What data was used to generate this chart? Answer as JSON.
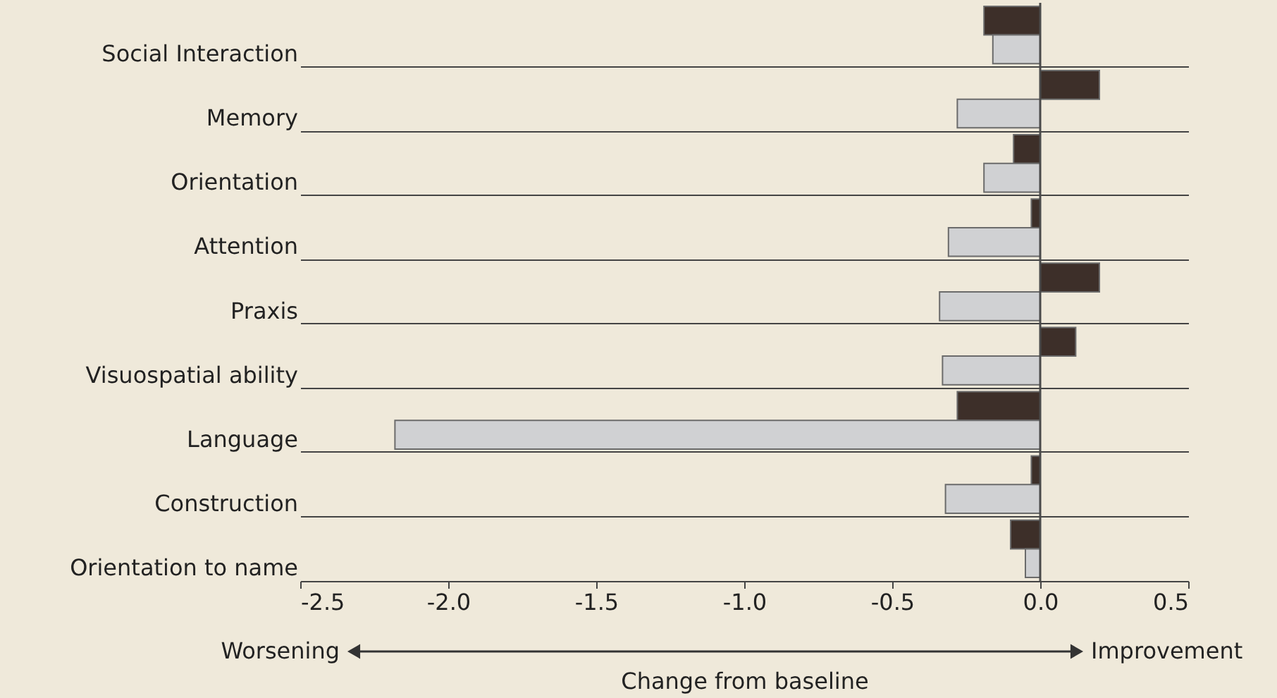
{
  "chart_data": {
    "type": "bar",
    "orientation": "horizontal",
    "xlabel": "Change from baseline",
    "categories": [
      "Social Interaction",
      "Memory",
      "Orientation",
      "Attention",
      "Praxis",
      "Visuospatial ability",
      "Language",
      "Construction",
      "Orientation to name"
    ],
    "series": [
      {
        "color": "#3d2f29",
        "values": [
          -0.19,
          0.2,
          -0.09,
          -0.03,
          0.2,
          0.12,
          -0.28,
          -0.03,
          -0.1
        ]
      },
      {
        "color": "#d0d1d3",
        "values": [
          -0.16,
          -0.28,
          -0.19,
          -0.31,
          -0.34,
          -0.33,
          -2.18,
          -0.32,
          -0.05
        ]
      }
    ],
    "xlim": [
      -2.5,
      0.5
    ],
    "xticks": [
      {
        "value": -2.5,
        "label": "-2.5"
      },
      {
        "value": -2.0,
        "label": "-2.0"
      },
      {
        "value": -1.5,
        "label": "-1.5"
      },
      {
        "value": -1.0,
        "label": "-1.0"
      },
      {
        "value": -0.5,
        "label": "-0.5"
      },
      {
        "value": 0.0,
        "label": "0.0"
      },
      {
        "value": 0.5,
        "label": "0.5"
      }
    ],
    "ref_lines": [
      {
        "axis": "x",
        "value": 0,
        "color": "#4a4a4a"
      }
    ],
    "grid": "y",
    "annotations": [
      "Worsening",
      "Improvement"
    ]
  }
}
